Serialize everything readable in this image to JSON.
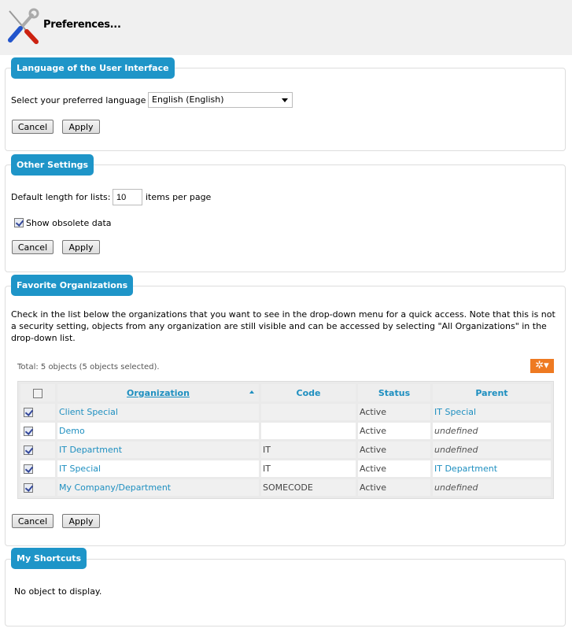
{
  "header": {
    "title": "Preferences..."
  },
  "language": {
    "legend": "Language of the User Interface",
    "label": "Select your preferred language",
    "selected": "English (English)",
    "cancel": "Cancel",
    "apply": "Apply"
  },
  "other": {
    "legend": "Other Settings",
    "length_label": "Default length for lists:",
    "length_value": "10",
    "length_suffix": "items per page",
    "obsolete_label": "Show obsolete data",
    "obsolete_checked": true,
    "cancel": "Cancel",
    "apply": "Apply"
  },
  "favorites": {
    "legend": "Favorite Organizations",
    "description": "Check in the list below the organizations that you want to see in the drop-down menu for a quick access. Note that this is not a security setting, objects from any organization are still visible and can be accessed by selecting \"All Organizations\" in the drop-down list.",
    "total": "Total: 5 objects (5 objects selected).",
    "columns": [
      "Organization",
      "Code",
      "Status",
      "Parent"
    ],
    "rows": [
      {
        "org": "Client Special",
        "code": "",
        "status": "Active",
        "parent": "IT Special",
        "parent_defined": true
      },
      {
        "org": "Demo",
        "code": "",
        "status": "Active",
        "parent": "undefined",
        "parent_defined": false
      },
      {
        "org": "IT Department",
        "code": "IT",
        "status": "Active",
        "parent": "undefined",
        "parent_defined": false
      },
      {
        "org": "IT Special",
        "code": "IT",
        "status": "Active",
        "parent": "IT Department",
        "parent_defined": true
      },
      {
        "org": "My Company/Department",
        "code": "SOMECODE",
        "status": "Active",
        "parent": "undefined",
        "parent_defined": false
      }
    ],
    "cancel": "Cancel",
    "apply": "Apply",
    "accent": "#ee7a22"
  },
  "shortcuts": {
    "legend": "My Shortcuts",
    "empty": "No object to display."
  }
}
